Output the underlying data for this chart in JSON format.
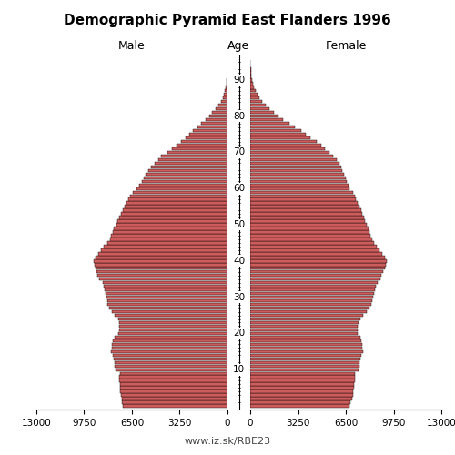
{
  "title": "Demographic Pyramid East Flanders 1996",
  "label_male": "Male",
  "label_female": "Female",
  "label_age": "Age",
  "watermark": "www.iz.sk/RBE23",
  "xlim": 13000,
  "bar_color": "#CD5C5C",
  "bar_edge_color": "#000000",
  "background_color": "#ffffff",
  "ages": [
    0,
    1,
    2,
    3,
    4,
    5,
    6,
    7,
    8,
    9,
    10,
    11,
    12,
    13,
    14,
    15,
    16,
    17,
    18,
    19,
    20,
    21,
    22,
    23,
    24,
    25,
    26,
    27,
    28,
    29,
    30,
    31,
    32,
    33,
    34,
    35,
    36,
    37,
    38,
    39,
    40,
    41,
    42,
    43,
    44,
    45,
    46,
    47,
    48,
    49,
    50,
    51,
    52,
    53,
    54,
    55,
    56,
    57,
    58,
    59,
    60,
    61,
    62,
    63,
    64,
    65,
    66,
    67,
    68,
    69,
    70,
    71,
    72,
    73,
    74,
    75,
    76,
    77,
    78,
    79,
    80,
    81,
    82,
    83,
    84,
    85,
    86,
    87,
    88,
    89,
    90,
    91,
    92,
    93,
    94,
    95
  ],
  "male": [
    7100,
    7150,
    7200,
    7250,
    7280,
    7300,
    7320,
    7340,
    7350,
    7330,
    7600,
    7650,
    7700,
    7750,
    7800,
    7900,
    7870,
    7840,
    7780,
    7650,
    7450,
    7380,
    7350,
    7370,
    7450,
    7680,
    7880,
    8050,
    8150,
    8200,
    8250,
    8300,
    8360,
    8420,
    8480,
    8700,
    8820,
    8900,
    9000,
    9050,
    9100,
    9000,
    8800,
    8600,
    8400,
    8200,
    8000,
    7900,
    7800,
    7750,
    7580,
    7470,
    7360,
    7240,
    7120,
    6980,
    6850,
    6720,
    6590,
    6450,
    6200,
    5980,
    5820,
    5700,
    5580,
    5400,
    5180,
    4960,
    4720,
    4500,
    4100,
    3750,
    3450,
    3150,
    2850,
    2600,
    2330,
    2050,
    1780,
    1510,
    1250,
    1020,
    790,
    610,
    440,
    330,
    235,
    165,
    108,
    65,
    38,
    22,
    12,
    7,
    3,
    1
  ],
  "female": [
    6750,
    6820,
    6900,
    6980,
    7020,
    7060,
    7080,
    7100,
    7110,
    7090,
    7350,
    7400,
    7450,
    7500,
    7550,
    7660,
    7640,
    7610,
    7560,
    7460,
    7310,
    7280,
    7280,
    7350,
    7480,
    7700,
    7920,
    8120,
    8240,
    8300,
    8360,
    8420,
    8490,
    8560,
    8640,
    8820,
    8940,
    9030,
    9140,
    9200,
    9260,
    9150,
    8960,
    8800,
    8620,
    8430,
    8280,
    8180,
    8090,
    8040,
    7920,
    7820,
    7720,
    7620,
    7520,
    7420,
    7310,
    7200,
    7090,
    6980,
    6760,
    6660,
    6570,
    6480,
    6380,
    6280,
    6180,
    6090,
    5870,
    5660,
    5380,
    5100,
    4800,
    4490,
    4090,
    3780,
    3470,
    3050,
    2650,
    2240,
    1940,
    1630,
    1320,
    1060,
    810,
    640,
    480,
    355,
    255,
    175,
    128,
    85,
    54,
    32,
    18,
    8
  ]
}
